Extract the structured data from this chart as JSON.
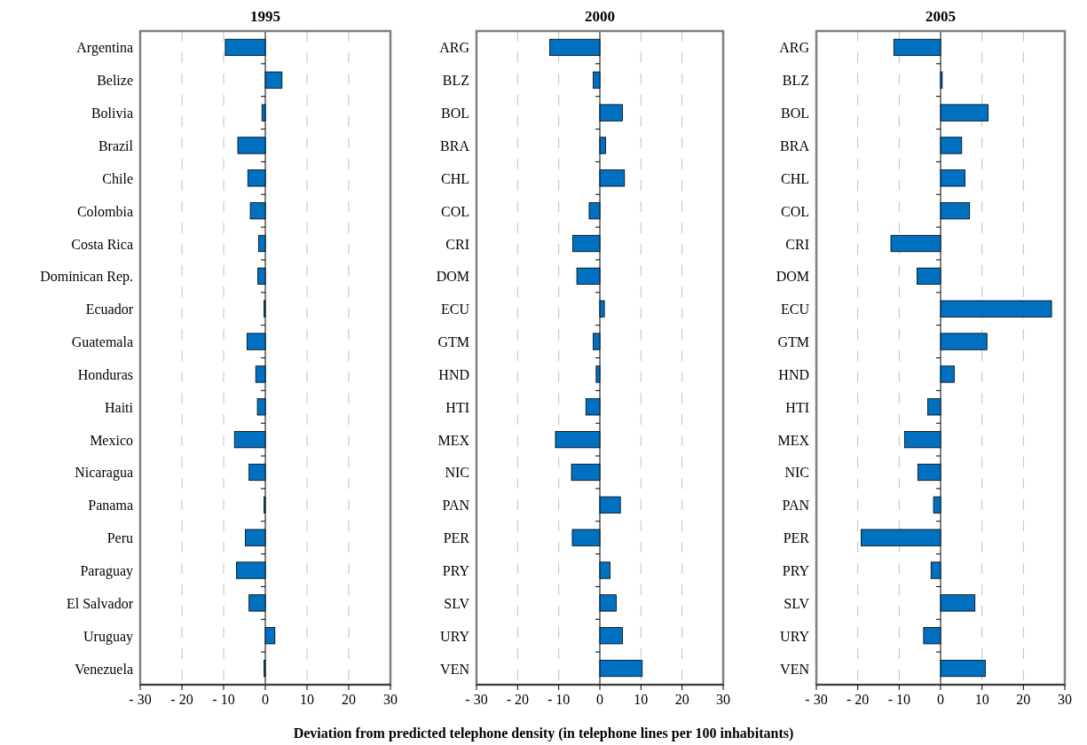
{
  "chart_data": [
    {
      "type": "bar",
      "orientation": "horizontal",
      "title": "1995",
      "categories": [
        "Argentina",
        "Belize",
        "Bolivia",
        "Brazil",
        "Chile",
        "Colombia",
        "Costa Rica",
        "Dominican Rep.",
        "Ecuador",
        "Guatemala",
        "Honduras",
        "Haiti",
        "Mexico",
        "Nicaragua",
        "Panama",
        "Peru",
        "Paraguay",
        "El Salvador",
        "Uruguay",
        "Venezuela"
      ],
      "values": [
        -9.6,
        4.0,
        -0.8,
        -6.6,
        -4.2,
        -3.6,
        -1.6,
        -1.8,
        -0.3,
        -4.4,
        -2.3,
        -1.9,
        -7.4,
        -3.9,
        -0.3,
        -4.8,
        -6.9,
        -3.9,
        2.3,
        -0.3
      ],
      "color": "#0070c0",
      "xlim": [
        -30,
        30
      ],
      "xticks": [
        {
          "value": -30,
          "label": "- 30"
        },
        {
          "value": -20,
          "label": "- 20"
        },
        {
          "value": -10,
          "label": "- 10"
        },
        0,
        10,
        20,
        30
      ],
      "grid": "x"
    },
    {
      "type": "bar",
      "orientation": "horizontal",
      "title": "2000",
      "xlabel": "Deviation from predicted telephone density (in telephone lines per 100 inhabitants)",
      "categories": [
        "ARG",
        "BLZ",
        "BOL",
        "BRA",
        "CHL",
        "COL",
        "CRI",
        "DOM",
        "ECU",
        "GTM",
        "HND",
        "HTI",
        "MEX",
        "NIC",
        "PAN",
        "PER",
        "PRY",
        "SLV",
        "URY",
        "VEN"
      ],
      "values": [
        -12.2,
        -1.6,
        5.5,
        1.4,
        6.0,
        -2.6,
        -6.6,
        -5.6,
        1.1,
        -1.6,
        -0.9,
        -3.4,
        -10.8,
        -6.9,
        5.0,
        -6.7,
        2.5,
        4.0,
        5.5,
        10.3
      ],
      "color": "#0070c0",
      "xlim": [
        -30,
        30
      ],
      "xticks": [
        {
          "value": -30,
          "label": "- 30"
        },
        {
          "value": -20,
          "label": "- 20"
        },
        {
          "value": -10,
          "label": "- 10"
        },
        0,
        10,
        20,
        30
      ],
      "grid": "x"
    },
    {
      "type": "bar",
      "orientation": "horizontal",
      "title": "2005",
      "categories": [
        "ARG",
        "BLZ",
        "BOL",
        "BRA",
        "CHL",
        "COL",
        "CRI",
        "DOM",
        "ECU",
        "GTM",
        "HND",
        "HTI",
        "MEX",
        "NIC",
        "PAN",
        "PER",
        "PRY",
        "SLV",
        "URY",
        "VEN"
      ],
      "values": [
        -11.3,
        0.4,
        11.5,
        5.1,
        5.9,
        7.0,
        -12.0,
        -5.7,
        26.8,
        11.2,
        3.3,
        -3.1,
        -8.7,
        -5.5,
        -1.7,
        -19.2,
        -2.3,
        8.3,
        -4.1,
        10.8
      ],
      "color": "#0070c0",
      "xlim": [
        -30,
        30
      ],
      "xticks": [
        {
          "value": -30,
          "label": "- 30"
        },
        {
          "value": -20,
          "label": "- 20"
        },
        {
          "value": -10,
          "label": "- 10"
        },
        0,
        10,
        20,
        30
      ],
      "grid": "x"
    }
  ]
}
